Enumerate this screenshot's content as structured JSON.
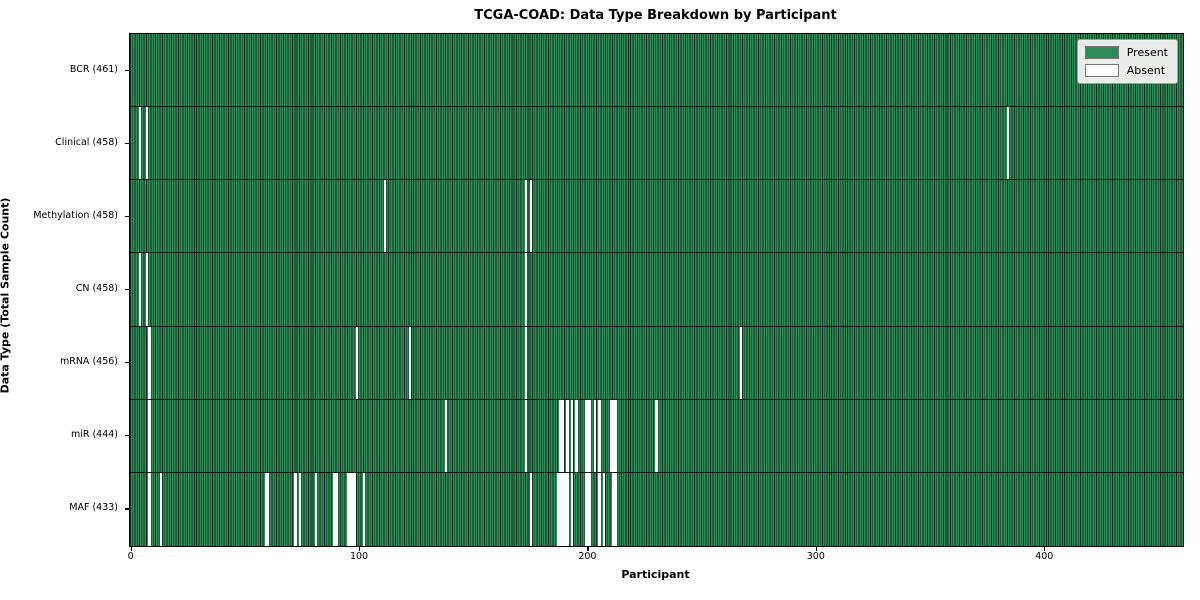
{
  "chart_data": {
    "type": "heatmap",
    "title": "TCGA-COAD: Data Type Breakdown by Participant",
    "xlabel": "Participant",
    "ylabel": "Data Type (Total Sample Count)",
    "xlim": [
      0,
      461
    ],
    "x_ticks": [
      0,
      100,
      200,
      300,
      400
    ],
    "n_participants": 461,
    "grid": false,
    "legend": {
      "position": "upper right",
      "entries": [
        {
          "label": "Present",
          "color": "#2e8b57"
        },
        {
          "label": "Absent",
          "color": "#ffffff"
        }
      ]
    },
    "rows": [
      {
        "label": "BCR (461)",
        "name": "BCR",
        "total": 461,
        "absent_participants": []
      },
      {
        "label": "Clinical (458)",
        "name": "Clinical",
        "total": 458,
        "absent_participants": [
          4,
          7,
          384
        ]
      },
      {
        "label": "Methylation (458)",
        "name": "Methylation",
        "total": 458,
        "absent_participants": [
          111,
          173,
          175
        ]
      },
      {
        "label": "CN (458)",
        "name": "CN",
        "total": 458,
        "absent_participants": [
          4,
          7,
          173
        ]
      },
      {
        "label": "mRNA (456)",
        "name": "mRNA",
        "total": 456,
        "absent_participants": [
          8,
          99,
          122,
          173,
          267
        ]
      },
      {
        "label": "miR (444)",
        "name": "miR",
        "total": 444,
        "absent_participants": [
          8,
          138,
          173,
          188,
          189,
          191,
          193,
          195,
          199,
          200,
          201,
          203,
          205,
          210,
          211,
          212,
          230
        ]
      },
      {
        "label": "MAF (433)",
        "name": "MAF",
        "total": 433,
        "absent_participants": [
          8,
          13,
          59,
          60,
          72,
          74,
          81,
          89,
          90,
          95,
          96,
          97,
          98,
          102,
          175,
          187,
          188,
          189,
          190,
          191,
          193,
          199,
          200,
          201,
          205,
          207,
          211,
          212
        ]
      }
    ],
    "colors": {
      "present": "#2e8b57",
      "absent": "#ffffff",
      "cell_edge": "#10331f",
      "plot_border": "#000000",
      "legend_bg": "#e9ece9",
      "legend_border": "#9f9f9f",
      "background": "#ffffff"
    }
  }
}
